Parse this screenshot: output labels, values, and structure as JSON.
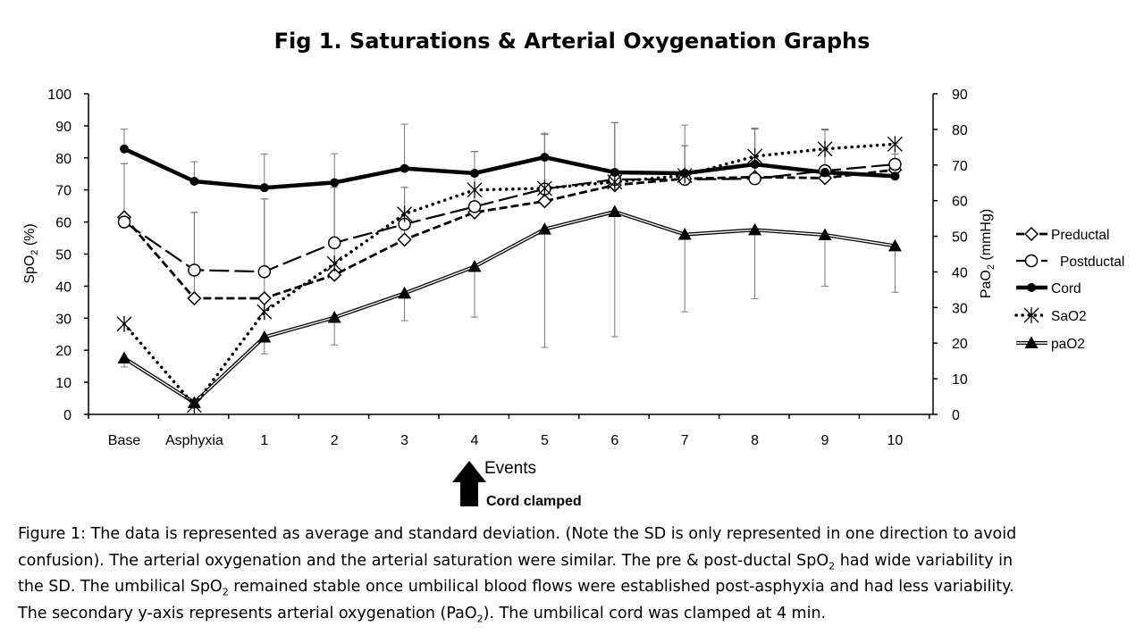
{
  "chart_data": {
    "type": "line",
    "title": "Fig 1. Saturations & Arterial Oxygenation Graphs",
    "xlabel": "Events",
    "ylabel": "SpO",
    "ylabel_sub": "2",
    "ylabel_suffix": " (%)",
    "y2label": "PaO",
    "y2label_sub": "2",
    "y2label_suffix": " (mmHg)",
    "categories": [
      "Base",
      "Asphyxia",
      "1",
      "2",
      "3",
      "4",
      "5",
      "6",
      "7",
      "8",
      "9",
      "10"
    ],
    "ylim": [
      0,
      100
    ],
    "y_ticks": [
      0,
      10,
      20,
      30,
      40,
      50,
      60,
      70,
      80,
      90,
      100
    ],
    "y2lim": [
      0,
      90
    ],
    "y2_ticks": [
      0,
      10,
      20,
      30,
      40,
      50,
      60,
      70,
      80,
      90
    ],
    "legend_position": "right",
    "grid": false,
    "series": [
      {
        "name": "Preductal",
        "axis": "left",
        "marker": "diamond",
        "line": "dash",
        "values": [
          61.5,
          36.2,
          36.2,
          43.5,
          54.5,
          63,
          66.5,
          71.5,
          73.5,
          74,
          73.7,
          76.3
        ],
        "error_upper": [
          78.2,
          63,
          67.2,
          70.8,
          70.8,
          82,
          87.3,
          91,
          83.8,
          89,
          88.7,
          81.2
        ]
      },
      {
        "name": "Postductal",
        "axis": "left",
        "marker": "circle",
        "line": "longdash",
        "values": [
          60,
          45,
          44.5,
          53.5,
          59.3,
          64.8,
          70.3,
          73.3,
          73.3,
          73.5,
          76,
          78
        ],
        "error_upper": [
          78.2,
          63,
          67.2,
          70.8,
          70.8,
          82,
          87.3,
          91,
          83.8,
          89,
          88.7,
          81.2
        ]
      },
      {
        "name": "Cord",
        "axis": "left",
        "marker": "dot",
        "line": "thick",
        "values": [
          82.8,
          72.7,
          70.7,
          72.3,
          76.7,
          75.2,
          80.2,
          75.5,
          75.2,
          78,
          75.5,
          74.3
        ],
        "error_upper": [
          89,
          78.8,
          81.2,
          81.3,
          90.5,
          82,
          87.7,
          91,
          90.2,
          89.3,
          89,
          84.5
        ]
      },
      {
        "name": "SaO2",
        "axis": "left",
        "marker": "asterisk",
        "line": "dot",
        "values": [
          28.2,
          2.8,
          32,
          47,
          62.5,
          70,
          70.5,
          72.5,
          74.5,
          80.5,
          82.8,
          84.3
        ],
        "error_upper": []
      },
      {
        "name": "paO2",
        "axis": "right",
        "marker": "triangle",
        "line": "double",
        "values": [
          15.8,
          3.3,
          21.7,
          27.2,
          34,
          41.5,
          52,
          56.9,
          50.5,
          51.8,
          50.4,
          47.3
        ],
        "error_lower": [
          13.3,
          1.8,
          17,
          19.5,
          26.3,
          27.3,
          18.8,
          21.8,
          28.8,
          32.5,
          36,
          34.3
        ]
      }
    ],
    "annotation": "Cord clamped"
  },
  "caption": {
    "line1": "Figure 1: The data is represented as average and standard deviation. (Note the SD is only represented in one direction to avoid",
    "line2_a": "confusion). The arterial oxygenation and the arterial saturation were similar. The pre & post-ductal SpO",
    "line2_sub": "2",
    "line2_b": " had wide variability in",
    "line3_a": "the SD. The umbilical SpO",
    "line3_sub": "2",
    "line3_b": " remained stable once umbilical blood flows were established post-asphyxia and had less variability.",
    "line4_a": "The secondary y-axis represents arterial oxygenation (PaO",
    "line4_sub": "2",
    "line4_b": "). The umbilical cord was clamped at 4 min."
  }
}
